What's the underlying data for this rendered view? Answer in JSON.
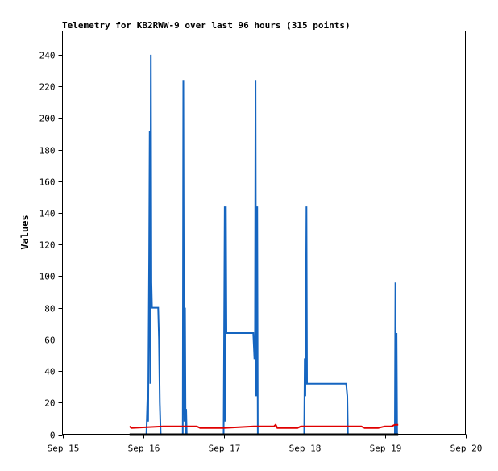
{
  "chart_data": {
    "type": "line",
    "title": "Telemetry for KB2RWW-9 over last 96 hours (315 points)",
    "xlabel": "",
    "ylabel": "Values",
    "x_ticks": [
      "Sep 15",
      "Sep 16",
      "Sep 17",
      "Sep 18",
      "Sep 19",
      "Sep 20"
    ],
    "x_range": [
      "Sep 15",
      "Sep 20"
    ],
    "ylim": [
      0,
      255
    ],
    "y_ticks": [
      0,
      20,
      40,
      60,
      80,
      100,
      120,
      140,
      160,
      180,
      200,
      220,
      240
    ],
    "grid": false,
    "legend": "none",
    "series": [
      {
        "color": "#1565c0",
        "x": [
          "Sep 16 01:00",
          "Sep 16 01:20",
          "Sep 16 01:30",
          "Sep 16 01:40",
          "Sep 16 01:50",
          "Sep 16 02:00",
          "Sep 16 02:10",
          "Sep 16 02:20",
          "Sep 16 02:30",
          "Sep 16 02:40",
          "Sep 16 03:00",
          "Sep 16 04:30",
          "Sep 16 04:45",
          "Sep 16 05:00",
          "Sep 16 05:15",
          "Sep 16 05:30",
          "Sep 16 11:50",
          "Sep 16 12:00",
          "Sep 16 12:10",
          "Sep 16 12:20",
          "Sep 16 12:30",
          "Sep 16 12:40",
          "Sep 16 12:50",
          "Sep 16 13:00",
          "Sep 16 13:10",
          "Sep 16 13:20",
          "Sep 17 00:00",
          "Sep 17 00:10",
          "Sep 17 00:20",
          "Sep 17 00:30",
          "Sep 17 00:40",
          "Sep 17 00:50",
          "Sep 17 06:00",
          "Sep 17 06:30",
          "Sep 17 07:00",
          "Sep 17 08:50",
          "Sep 17 09:10",
          "Sep 17 09:20",
          "Sep 17 09:30",
          "Sep 17 09:40",
          "Sep 17 09:50",
          "Sep 17 10:00",
          "Sep 17 10:10",
          "Sep 17 10:20",
          "Sep 18 00:00",
          "Sep 18 00:10",
          "Sep 18 00:20",
          "Sep 18 00:30",
          "Sep 18 00:40",
          "Sep 18 00:50",
          "Sep 18 01:00",
          "Sep 18 12:00",
          "Sep 18 12:30",
          "Sep 18 12:50",
          "Sep 18 13:00",
          "Sep 19 03:00",
          "Sep 19 03:10",
          "Sep 19 03:20",
          "Sep 19 03:30",
          "Sep 19 03:40"
        ],
        "y": [
          0,
          24,
          8,
          56,
          112,
          192,
          32,
          240,
          96,
          80,
          80,
          80,
          60,
          20,
          0,
          0,
          0,
          224,
          72,
          8,
          80,
          0,
          16,
          0,
          0,
          0,
          0,
          72,
          144,
          8,
          144,
          64,
          64,
          64,
          64,
          64,
          48,
          48,
          224,
          24,
          128,
          144,
          0,
          0,
          0,
          48,
          24,
          72,
          144,
          32,
          32,
          32,
          32,
          24,
          0,
          0,
          96,
          32,
          64,
          0
        ]
      },
      {
        "color": "#e00000",
        "x": [
          "Sep 15 20:00",
          "Sep 15 20:30",
          "Sep 16 06:00",
          "Sep 16 16:00",
          "Sep 16 17:00",
          "Sep 17 00:00",
          "Sep 17 09:00",
          "Sep 17 15:00",
          "Sep 17 15:30",
          "Sep 17 16:00",
          "Sep 17 22:00",
          "Sep 17 23:00",
          "Sep 18 10:00",
          "Sep 18 14:00",
          "Sep 18 17:00",
          "Sep 18 18:00",
          "Sep 18 22:00",
          "Sep 19 00:00",
          "Sep 19 02:00",
          "Sep 19 03:00",
          "Sep 19 04:00"
        ],
        "y": [
          5,
          4,
          5,
          5,
          4,
          4,
          5,
          5,
          6,
          4,
          4,
          5,
          5,
          5,
          5,
          4,
          4,
          5,
          5,
          6,
          6
        ]
      },
      {
        "color": "#000000",
        "x": [
          "Sep 15 20:00",
          "Sep 19 04:00"
        ],
        "y": [
          0,
          0
        ]
      }
    ]
  }
}
